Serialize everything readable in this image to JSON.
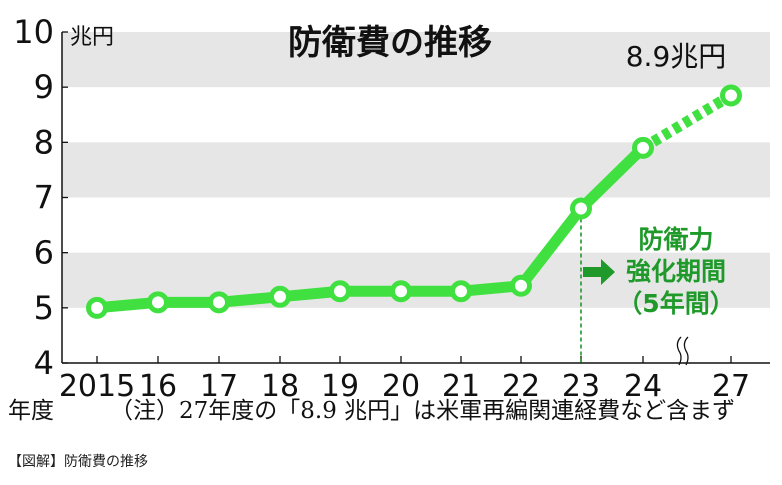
{
  "chart_data": {
    "type": "line",
    "title": "防衛費の推移",
    "ylabel": "兆円",
    "ylim": [
      4,
      10
    ],
    "yticks": [
      "4",
      "5",
      "6",
      "7",
      "8",
      "9",
      "10"
    ],
    "categories": [
      "2015",
      "16",
      "17",
      "18",
      "19",
      "20",
      "21",
      "22",
      "23",
      "24",
      "27"
    ],
    "values": [
      5.0,
      5.1,
      5.1,
      5.2,
      5.3,
      5.3,
      5.3,
      5.4,
      6.8,
      7.9,
      8.85
    ],
    "dashed_from_index": 9,
    "axis_break_after_index": 9,
    "grid": "alternating horizontal bands",
    "series_color": "#3fe03f",
    "band_color": "#e6e6e6",
    "value_callout": "8.9兆円",
    "period_label_lines": [
      "防衛力",
      "強化期間",
      "（5年間）"
    ],
    "period_start_category": "23",
    "period_color": "#1f9a2a",
    "x_prefix_label": "年度",
    "footnote": "（注）27年度の「8.9 兆円」は米軍再編関連経費など含まず"
  },
  "caption": "【図解】防衛費の推移"
}
